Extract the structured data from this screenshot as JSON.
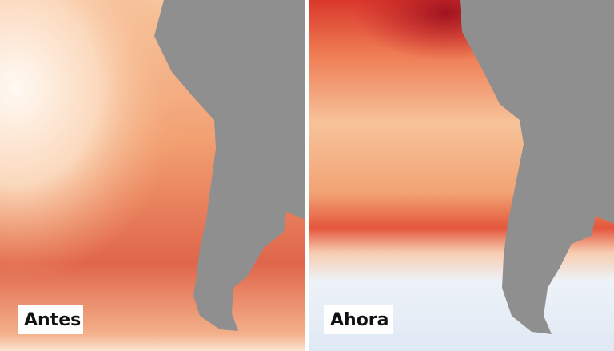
{
  "panels": [
    {
      "label": "Antes"
    },
    {
      "label": "Ahora"
    }
  ]
}
